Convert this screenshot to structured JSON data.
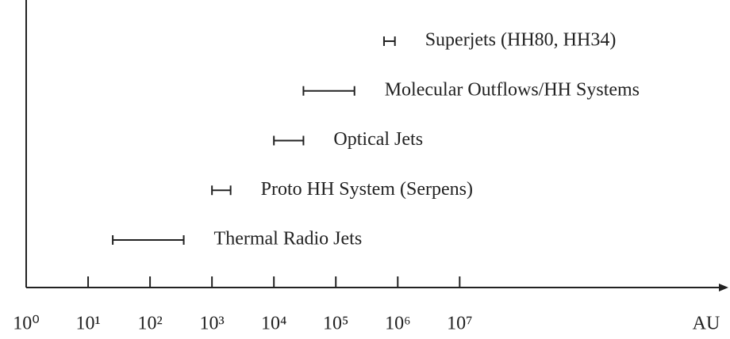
{
  "chart_data": {
    "type": "range",
    "categories": [
      "Superjets (HH80, HH34)",
      "Molecular Outflows/HH Systems",
      "Optical Jets",
      "Proto HH System (Serpens)",
      "Thermal Radio Jets"
    ],
    "low": [
      600000,
      30000,
      10000,
      1000,
      25
    ],
    "high": [
      900000,
      200000,
      30000,
      2000,
      350
    ],
    "color": "#222222",
    "xlabel": "AU",
    "xscale": "log",
    "xlim": [
      1,
      200000000000
    ],
    "xticks": [
      {
        "value": 1,
        "label": "10⁰"
      },
      {
        "value": 10,
        "label": "10¹"
      },
      {
        "value": 100,
        "label": "10²"
      },
      {
        "value": 1000,
        "label": "10³"
      },
      {
        "value": 10000,
        "label": "10⁴"
      },
      {
        "value": 100000,
        "label": "10⁵"
      },
      {
        "value": 1000000,
        "label": "10⁶"
      },
      {
        "value": 10000000,
        "label": "10⁷"
      }
    ],
    "grid": false
  }
}
